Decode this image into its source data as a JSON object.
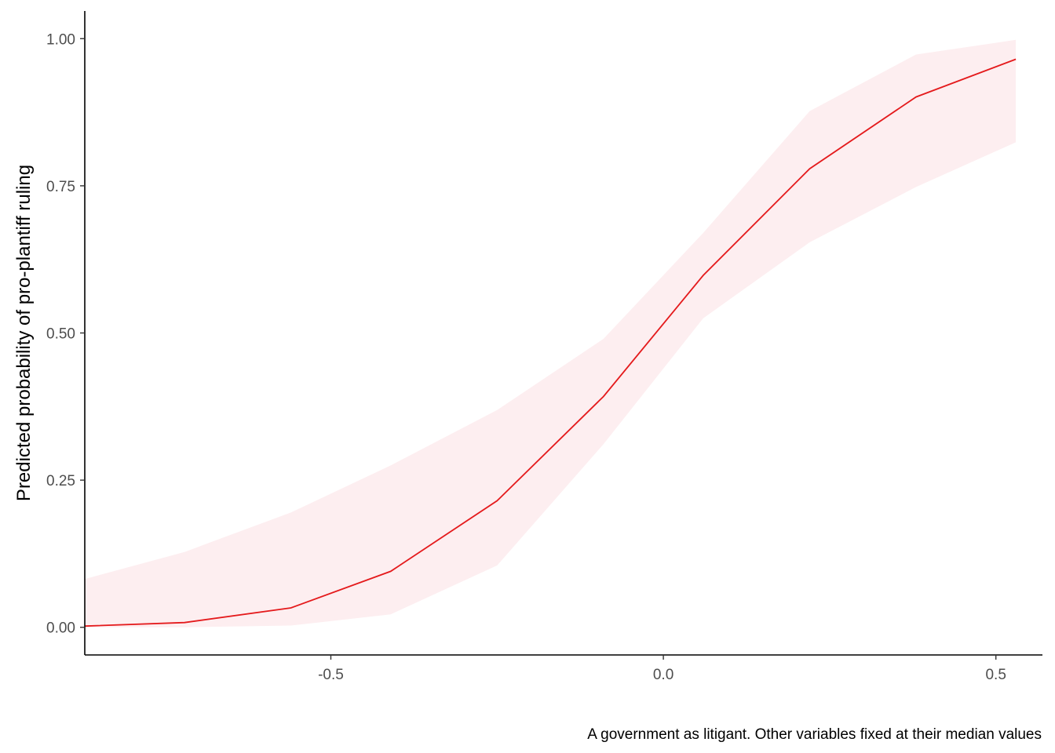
{
  "chart_data": {
    "type": "line",
    "title": "",
    "xlabel": "",
    "ylabel": "Predicted probability of pro-plantiff ruling",
    "caption": "A government as litigant. Other variables fixed at their median values",
    "xlim": [
      -0.87,
      0.57
    ],
    "ylim": [
      -0.047,
      1.047
    ],
    "x_ticks": [
      -0.5,
      0.0,
      0.5
    ],
    "x_tick_labels": [
      "-0.5",
      "0.0",
      "0.5"
    ],
    "y_ticks": [
      0.0,
      0.25,
      0.5,
      0.75,
      1.0
    ],
    "y_tick_labels": [
      "0.00",
      "0.25",
      "0.50",
      "0.75",
      "1.00"
    ],
    "grid": false,
    "series": [
      {
        "name": "predicted probability",
        "color": "#e41a1c",
        "x": [
          -0.87,
          -0.72,
          -0.56,
          -0.41,
          -0.25,
          -0.09,
          0.06,
          0.22,
          0.38,
          0.53
        ],
        "values": [
          0.002,
          0.008,
          0.033,
          0.095,
          0.215,
          0.392,
          0.598,
          0.779,
          0.901,
          0.965
        ],
        "lower": [
          0.0,
          0.0,
          0.003,
          0.022,
          0.105,
          0.311,
          0.525,
          0.654,
          0.748,
          0.824
        ],
        "upper": [
          0.082,
          0.128,
          0.195,
          0.275,
          0.369,
          0.49,
          0.67,
          0.877,
          0.973,
          0.998
        ]
      }
    ],
    "ribbon_color": "#fdeef0"
  }
}
